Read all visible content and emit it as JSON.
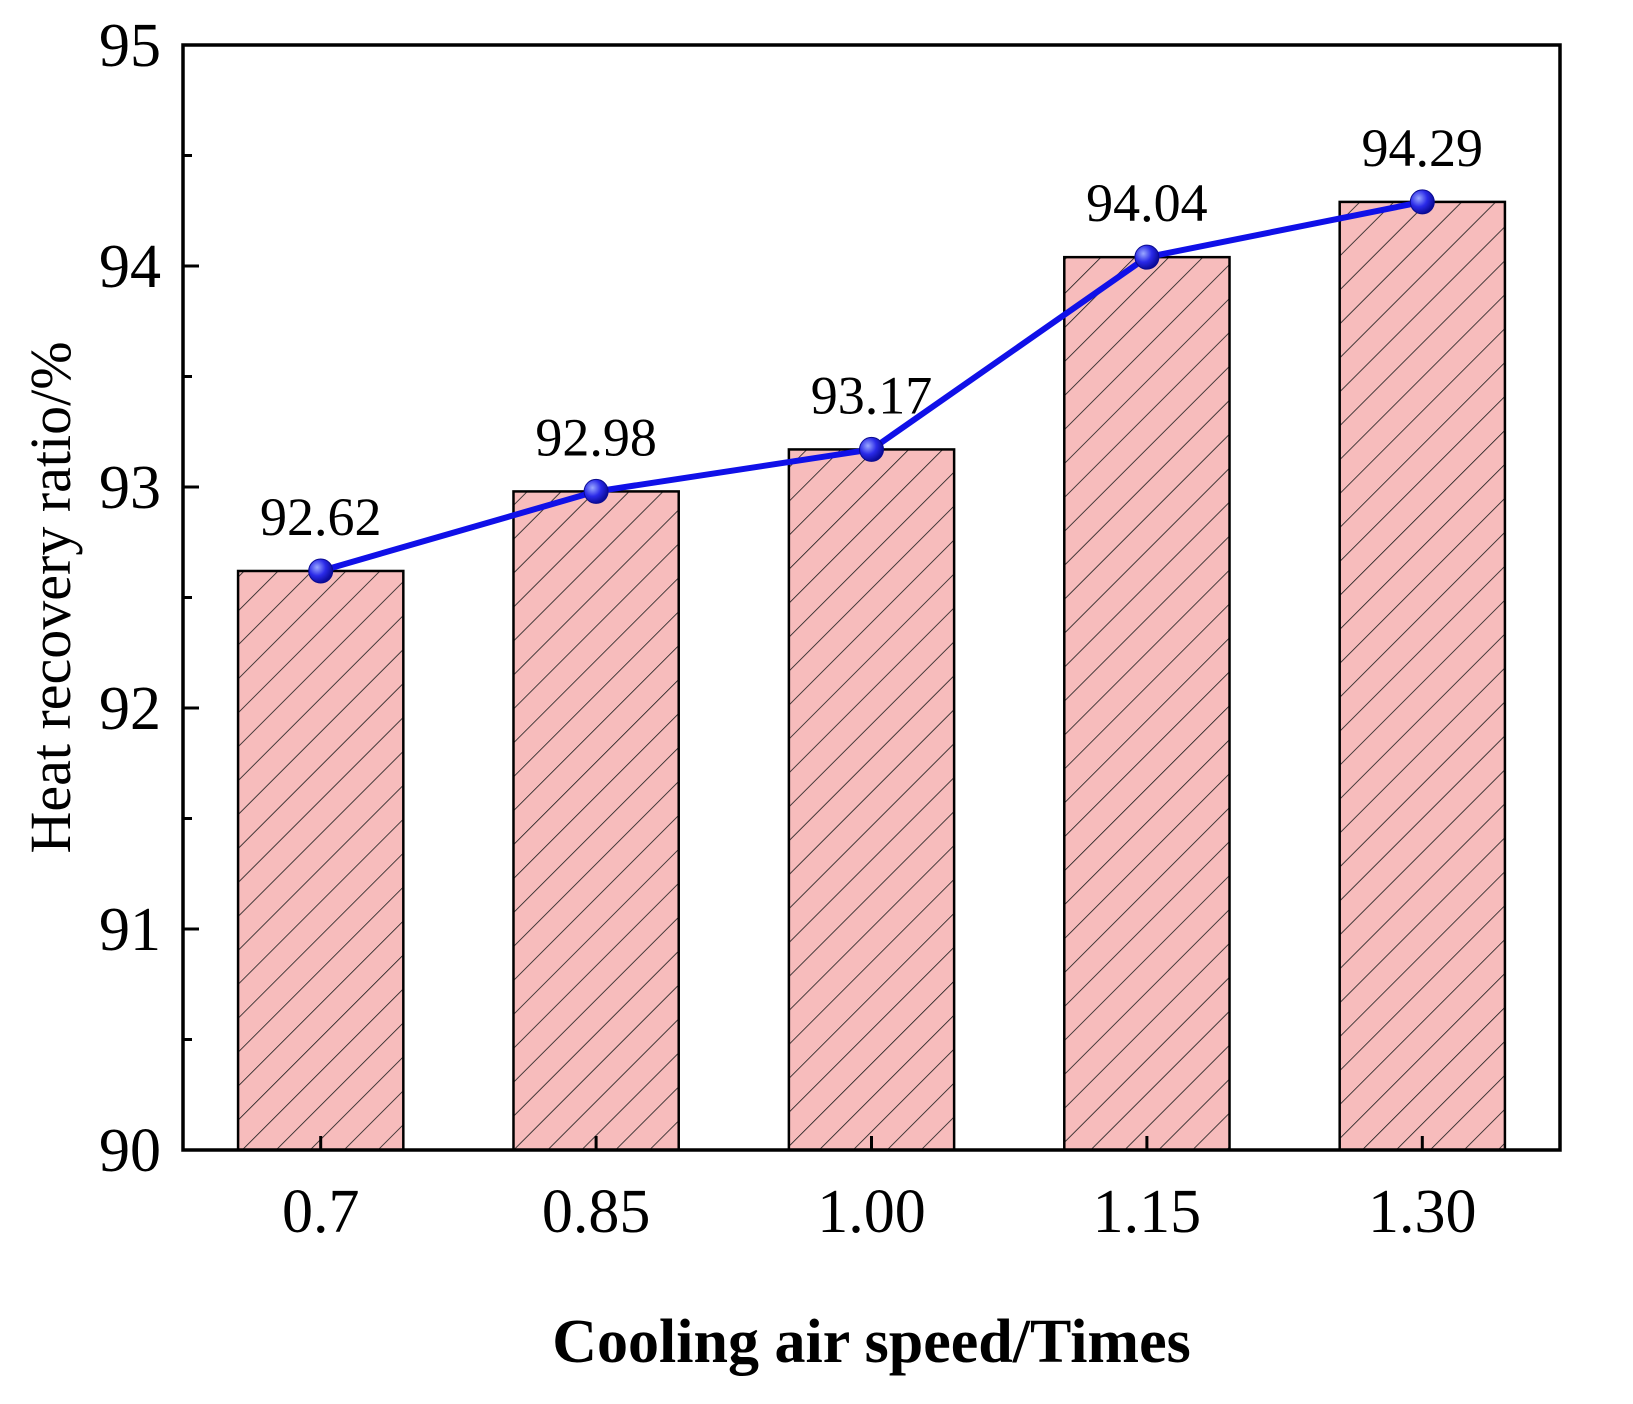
{
  "chart_data": {
    "type": "bar",
    "title": "",
    "xlabel": "Cooling air speed/Times",
    "ylabel": "Heat recovery ratio/%",
    "categories": [
      "0.7",
      "0.85",
      "1.00",
      "1.15",
      "1.30"
    ],
    "values": [
      92.62,
      92.98,
      93.17,
      94.04,
      94.29
    ],
    "data_labels": [
      "92.62",
      "92.98",
      "93.17",
      "94.04",
      "94.29"
    ],
    "ylim": [
      90,
      95
    ],
    "yticks": [
      90,
      91,
      92,
      93,
      94,
      95
    ],
    "ytick_labels": [
      "90",
      "91",
      "92",
      "93",
      "94",
      "95"
    ],
    "grid": false,
    "overlay_line": {
      "type": "line",
      "values": [
        92.62,
        92.98,
        93.17,
        94.04,
        94.29
      ],
      "marker": "circle"
    },
    "colors": {
      "bar_fill": "#f7bcbc",
      "bar_hatch": "#1a1a1a",
      "bar_edge": "#000000",
      "line": "#1010e8",
      "marker": "#1a1ae6",
      "axis": "#000000"
    }
  }
}
